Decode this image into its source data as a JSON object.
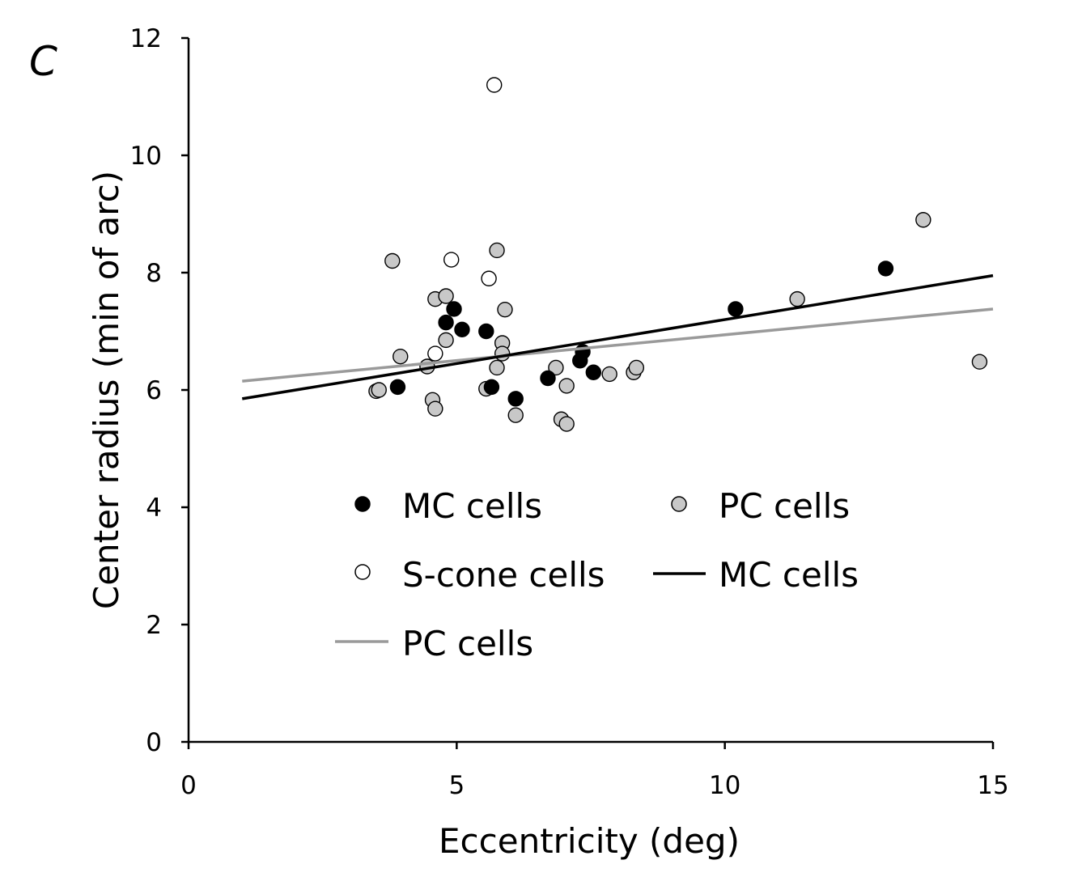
{
  "panel_label": "C",
  "chart_data": {
    "type": "scatter",
    "xlabel": "Eccentricity (deg)",
    "ylabel": "Center radius  (min of arc)",
    "xlim": [
      0,
      15
    ],
    "ylim": [
      0,
      12
    ],
    "xticks": [
      "0",
      "5",
      "10",
      "15"
    ],
    "yticks": [
      "0",
      "2",
      "4",
      "6",
      "8",
      "10",
      "12"
    ],
    "grid": false,
    "legend_position": "lower-center inside plot",
    "colors": {
      "mc": "#000000",
      "pc": "#c8c8c8",
      "scone": "#ffffff",
      "mc_line": "#000000",
      "pc_line": "#9a9a9a"
    },
    "series": [
      {
        "name": "MC cells",
        "kind": "points",
        "points": [
          [
            3.9,
            6.05
          ],
          [
            4.8,
            7.15
          ],
          [
            4.95,
            7.38
          ],
          [
            5.1,
            7.03
          ],
          [
            5.55,
            7.0
          ],
          [
            5.65,
            6.05
          ],
          [
            6.1,
            5.85
          ],
          [
            6.7,
            6.2
          ],
          [
            7.3,
            6.5
          ],
          [
            7.35,
            6.65
          ],
          [
            7.55,
            6.3
          ],
          [
            10.2,
            7.38
          ],
          [
            13.0,
            8.07
          ]
        ]
      },
      {
        "name": "PC cells",
        "kind": "points",
        "points": [
          [
            3.5,
            5.98
          ],
          [
            3.55,
            6.0
          ],
          [
            3.8,
            8.2
          ],
          [
            3.95,
            6.57
          ],
          [
            4.45,
            6.4
          ],
          [
            4.55,
            5.83
          ],
          [
            4.6,
            5.68
          ],
          [
            4.6,
            7.55
          ],
          [
            4.8,
            7.6
          ],
          [
            4.8,
            6.85
          ],
          [
            5.55,
            6.02
          ],
          [
            5.75,
            6.38
          ],
          [
            5.75,
            8.38
          ],
          [
            5.85,
            6.8
          ],
          [
            5.85,
            6.62
          ],
          [
            5.9,
            7.37
          ],
          [
            6.1,
            5.57
          ],
          [
            6.85,
            6.38
          ],
          [
            6.95,
            5.5
          ],
          [
            7.05,
            5.42
          ],
          [
            7.05,
            6.07
          ],
          [
            7.85,
            6.27
          ],
          [
            8.3,
            6.3
          ],
          [
            8.35,
            6.38
          ],
          [
            11.35,
            7.55
          ],
          [
            13.7,
            8.9
          ],
          [
            14.75,
            6.48
          ]
        ]
      },
      {
        "name": "S-cone cells",
        "kind": "points",
        "points": [
          [
            4.6,
            6.62
          ],
          [
            4.9,
            8.22
          ],
          [
            5.6,
            7.9
          ],
          [
            5.7,
            11.2
          ]
        ]
      },
      {
        "name": "MC cells",
        "kind": "line",
        "points": [
          [
            1.0,
            5.85
          ],
          [
            15.0,
            7.95
          ]
        ]
      },
      {
        "name": "PC cells",
        "kind": "line",
        "points": [
          [
            1.0,
            6.15
          ],
          [
            15.0,
            7.38
          ]
        ]
      }
    ],
    "legend": [
      {
        "label": "MC cells",
        "marker": "filled-black-dot"
      },
      {
        "label": "PC cells",
        "marker": "filled-gray-dot"
      },
      {
        "label": "S-cone cells",
        "marker": "open-dot"
      },
      {
        "label": "MC cells",
        "marker": "black-line"
      },
      {
        "label": "PC cells",
        "marker": "gray-line"
      }
    ]
  }
}
